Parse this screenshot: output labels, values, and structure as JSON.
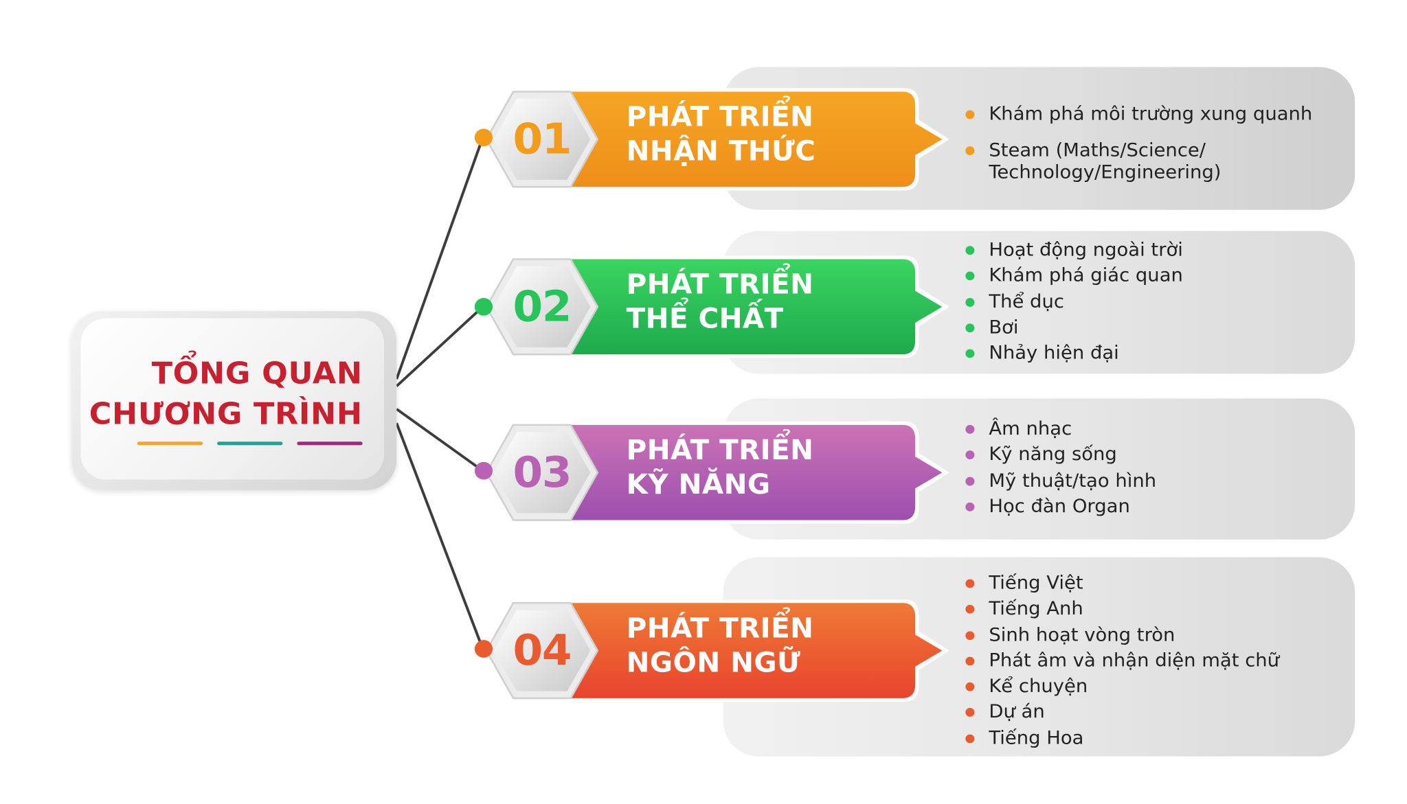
{
  "title": {
    "line1": "TỔNG QUAN",
    "line2": "CHƯƠNG TRÌNH"
  },
  "underline_colors": [
    "#f5a623",
    "#1aa79a",
    "#a0287e"
  ],
  "sections": [
    {
      "number": "01",
      "heading_line1": "PHÁT TRIỂN",
      "heading_line2": "NHẬN THỨC",
      "color": "#f39c1b",
      "color_light": "#f5a623",
      "color_dark": "#ef8e1a",
      "items": [
        "Khám phá môi trường xung quanh",
        "Steam (Maths/Science/",
        "Technology/Engineering)"
      ]
    },
    {
      "number": "02",
      "heading_line1": "PHÁT TRIỂN",
      "heading_line2": "THỂ CHẤT",
      "color": "#27c45a",
      "color_light": "#3ad560",
      "color_dark": "#1ea94d",
      "items": [
        "Hoạt động ngoài trời",
        "Khám phá giác quan",
        "Thể dục",
        "Bơi",
        "Nhảy hiện đại"
      ]
    },
    {
      "number": "03",
      "heading_line1": "PHÁT TRIỂN",
      "heading_line2": "KỸ NĂNG",
      "color": "#b962b3",
      "color_light": "#cc73b6",
      "color_dark": "#9c4fae",
      "items": [
        "Âm nhạc",
        "Kỹ năng sống",
        "Mỹ thuật/tạo hình",
        "Học đàn Organ"
      ]
    },
    {
      "number": "04",
      "heading_line1": "PHÁT TRIỂN",
      "heading_line2": "NGÔN NGỮ",
      "color": "#ea5a2f",
      "color_light": "#ee7a35",
      "color_dark": "#e8442d",
      "items": [
        "Tiếng Việt",
        "Tiếng Anh",
        "Sinh hoạt vòng tròn",
        "Phát âm và nhận diện mặt chữ",
        "Kể chuyện",
        "Dự án",
        "Tiếng Hoa"
      ]
    }
  ]
}
